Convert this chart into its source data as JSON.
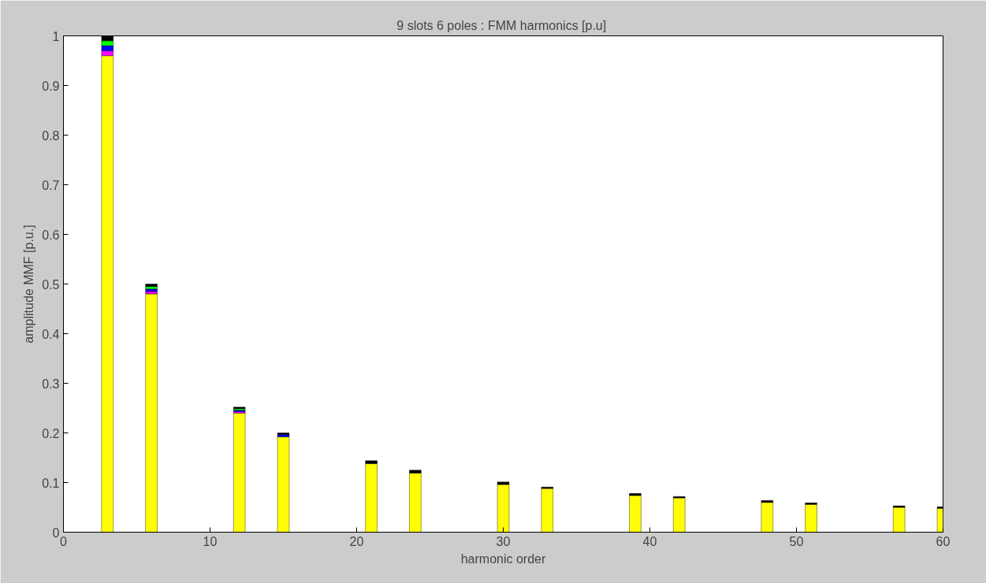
{
  "chart_data": {
    "type": "bar",
    "title": "9 slots 6 poles :  FMM harmonics [p.u]",
    "xlabel": "harmonic order",
    "ylabel": "amplitude MMF [p.u.]",
    "stacked": true,
    "x": [
      1,
      2,
      3,
      4,
      5,
      6,
      7,
      8,
      9,
      10,
      11,
      12,
      13,
      14,
      15,
      16,
      17,
      18,
      19,
      20,
      21,
      22,
      23,
      24,
      25,
      26,
      27,
      28,
      29,
      30,
      31,
      32,
      33,
      34,
      35,
      36,
      37,
      38,
      39,
      40,
      41,
      42,
      43,
      44,
      45,
      46,
      47,
      48,
      49,
      50,
      51,
      52,
      53,
      54,
      55,
      56,
      57,
      58,
      59,
      60
    ],
    "series": [
      {
        "color": "#ffff00",
        "values": [
          0,
          0,
          0.96,
          0,
          0,
          0.48,
          0,
          0,
          0,
          0,
          0,
          0.24,
          0,
          0,
          0.192,
          0,
          0,
          0,
          0,
          0,
          0.138,
          0,
          0,
          0.119,
          0,
          0,
          0,
          0,
          0,
          0.096,
          0,
          0,
          0.088,
          0,
          0,
          0,
          0,
          0,
          0.074,
          0,
          0,
          0.069,
          0,
          0,
          0,
          0,
          0,
          0.06,
          0,
          0,
          0.056,
          0,
          0,
          0,
          0,
          0,
          0.05,
          0,
          0,
          0.048
        ]
      },
      {
        "color": "#ff00ff",
        "values": [
          0,
          0,
          0.01,
          0,
          0,
          0.005,
          0,
          0,
          0,
          0,
          0,
          0.003,
          0,
          0,
          0,
          0,
          0,
          0,
          0,
          0,
          0,
          0,
          0,
          0,
          0,
          0,
          0,
          0,
          0,
          0,
          0,
          0,
          0,
          0,
          0,
          0,
          0,
          0,
          0,
          0,
          0,
          0,
          0,
          0,
          0,
          0,
          0,
          0,
          0,
          0,
          0,
          0,
          0,
          0,
          0,
          0,
          0,
          0,
          0,
          0
        ]
      },
      {
        "color": "#0000ff",
        "values": [
          0,
          0,
          0.01,
          0,
          0,
          0.005,
          0,
          0,
          0,
          0,
          0,
          0.003,
          0,
          0,
          0.005,
          0,
          0,
          0,
          0,
          0,
          0,
          0,
          0,
          0,
          0,
          0,
          0,
          0,
          0,
          0,
          0,
          0,
          0,
          0,
          0,
          0,
          0,
          0,
          0,
          0,
          0,
          0,
          0,
          0,
          0,
          0,
          0,
          0,
          0,
          0,
          0,
          0,
          0,
          0,
          0,
          0,
          0,
          0,
          0,
          0
        ]
      },
      {
        "color": "#00ff00",
        "values": [
          0,
          0,
          0.01,
          0,
          0,
          0.005,
          0,
          0,
          0,
          0,
          0,
          0.003,
          0,
          0,
          0,
          0,
          0,
          0,
          0,
          0,
          0,
          0,
          0,
          0,
          0,
          0,
          0,
          0,
          0,
          0,
          0,
          0,
          0,
          0,
          0,
          0,
          0,
          0,
          0,
          0,
          0,
          0,
          0,
          0,
          0,
          0,
          0,
          0,
          0,
          0,
          0,
          0,
          0,
          0,
          0,
          0,
          0,
          0,
          0,
          0
        ]
      },
      {
        "color": "#000000",
        "values": [
          0,
          0,
          0.01,
          0,
          0,
          0.005,
          0,
          0,
          0,
          0,
          0,
          0.003,
          0,
          0,
          0.003,
          0,
          0,
          0,
          0,
          0,
          0.006,
          0,
          0,
          0.006,
          0,
          0,
          0,
          0,
          0,
          0.005,
          0,
          0,
          0.003,
          0,
          0,
          0,
          0,
          0,
          0.004,
          0,
          0,
          0.003,
          0,
          0,
          0,
          0,
          0,
          0.004,
          0,
          0,
          0.003,
          0,
          0,
          0,
          0,
          0,
          0.003,
          0,
          0,
          0.003
        ]
      }
    ],
    "xlim": [
      0,
      60
    ],
    "xticks": [
      0,
      10,
      20,
      30,
      40,
      50,
      60
    ],
    "ylim": [
      0,
      1
    ],
    "yticks": [
      0,
      0.1,
      0.2,
      0.3,
      0.4,
      0.5,
      0.6,
      0.7,
      0.8,
      0.9,
      1
    ],
    "grid": false
  }
}
